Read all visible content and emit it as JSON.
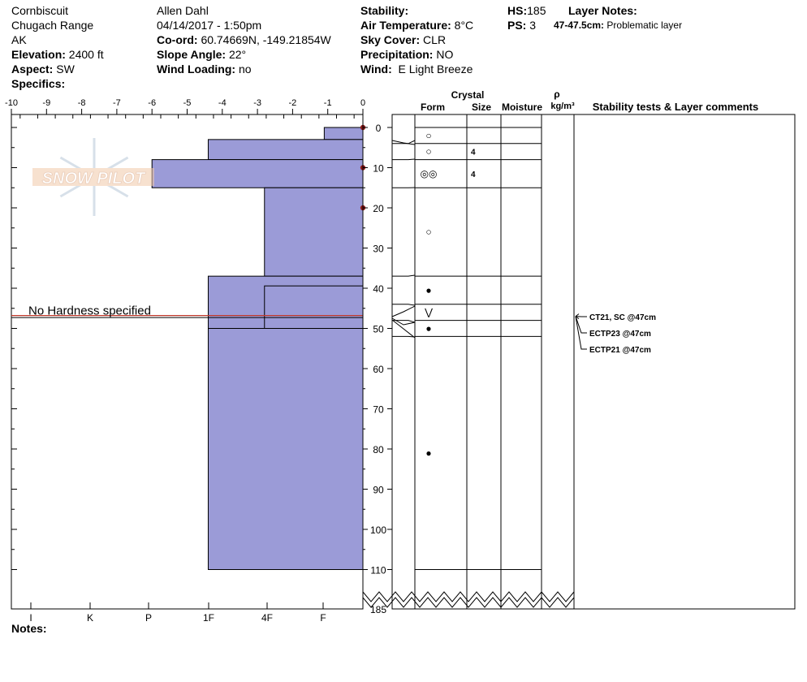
{
  "header": {
    "location": "Cornbiscuit",
    "range": "Chugach Range",
    "state": "AK",
    "elevation_label": "Elevation:",
    "elevation": "2400 ft",
    "aspect_label": "Aspect:",
    "aspect": "SW",
    "specifics_label": "Specifics:",
    "observer": "Allen Dahl",
    "datetime": "04/14/2017 - 1:50pm",
    "coord_label": "Co-ord:",
    "coord": "60.74669N, -149.21854W",
    "slope_label": "Slope Angle:",
    "slope": "22°",
    "wind_loading_label": "Wind Loading:",
    "wind_loading": "no",
    "stability_label": "Stability:",
    "air_temp_label": "Air Temperature:",
    "air_temp": "8°C",
    "sky_label": "Sky Cover:",
    "sky": "CLR",
    "precip_label": "Precipitation:",
    "precip": "NO",
    "wind_label": "Wind:",
    "wind": "E Light Breeze",
    "hs_label": "HS:",
    "hs": "185",
    "ps_label": "PS:",
    "ps": "3",
    "layer_notes_label": "Layer Notes:",
    "layer_note_range": "47-47.5cm:",
    "layer_note_text": "Problematic layer",
    "notes_label": "Notes:"
  },
  "watermark": "SNOW PILOT",
  "no_hardness_text": "No Hardness specified",
  "columns": {
    "crystal": "Crystal",
    "form": "Form",
    "size": "Size",
    "moisture": "Moisture",
    "rho": "ρ",
    "density_unit": "kg/m³",
    "stability": "Stability tests & Layer comments"
  },
  "colors": {
    "bar_fill": "#9b9bd7",
    "bar_stroke": "#000000",
    "temp_marker": "#8b1a1a",
    "weak_line": "#c0392b"
  },
  "chart_data": {
    "type": "bar",
    "title": "",
    "x_axis_top_ticks": [
      "-10",
      "-9",
      "-8",
      "-7",
      "-6",
      "-5",
      "-4",
      "-3",
      "-2",
      "-1",
      "0"
    ],
    "x_axis_bottom_ticks": [
      "I",
      "K",
      "P",
      "1F",
      "4F",
      "F"
    ],
    "y_ticks": [
      "0",
      "10",
      "20",
      "30",
      "40",
      "50",
      "60",
      "70",
      "80",
      "90",
      "100",
      "110",
      "185"
    ],
    "hardness_profile": [
      {
        "top": 0,
        "bottom": 3,
        "hardness": 1.1
      },
      {
        "top": 3,
        "bottom": 8,
        "hardness": 4.4
      },
      {
        "top": 8,
        "bottom": 15,
        "hardness": 6.0
      },
      {
        "top": 15,
        "bottom": 37,
        "hardness": 2.8
      },
      {
        "top": 37,
        "bottom": 50,
        "hardness": 4.4
      },
      {
        "top": 50,
        "bottom": 110,
        "hardness": 4.4
      }
    ],
    "hardness_overlay": {
      "top": 37,
      "bottom": 50,
      "hardness": 2.8
    },
    "weak_layer_depth": 47,
    "temperature_points": [
      {
        "depth": 0,
        "temp": 0
      },
      {
        "depth": 10,
        "temp": 0
      },
      {
        "depth": 20,
        "temp": 0
      }
    ],
    "layer_boundaries": [
      0,
      4,
      8,
      15,
      37,
      44,
      48,
      52,
      110
    ],
    "crystal_layers": [
      {
        "depth": 2,
        "form": "○",
        "size": ""
      },
      {
        "depth": 6,
        "form": "○",
        "size": "4"
      },
      {
        "depth": 11.5,
        "form": "◎◎",
        "size": "4"
      },
      {
        "depth": 26,
        "form": "○",
        "size": ""
      },
      {
        "depth": 40.5,
        "form": "●",
        "size": ""
      },
      {
        "depth": 46,
        "form": "⋁",
        "size": ""
      },
      {
        "depth": 50,
        "form": "●",
        "size": ""
      },
      {
        "depth": 81,
        "form": "●",
        "size": ""
      }
    ],
    "stability_tests": [
      "CT21, SC @47cm",
      "ECTP23 @47cm",
      "ECTP21 @47cm"
    ]
  }
}
